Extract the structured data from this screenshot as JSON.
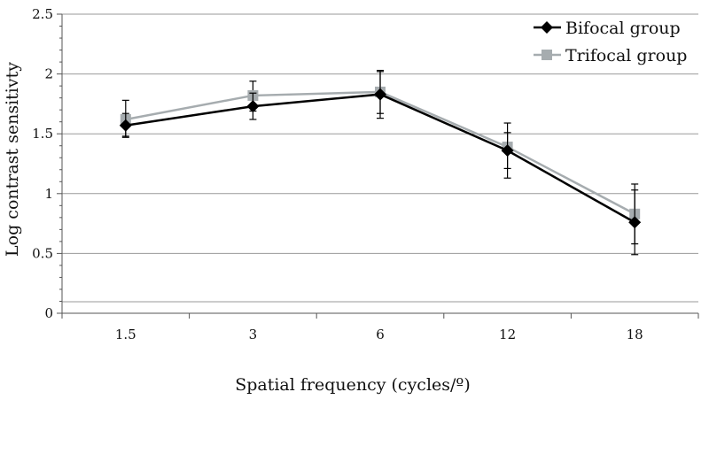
{
  "chart_data": {
    "type": "line",
    "title": "",
    "xlabel": "Spatial frequency (cycles/º)",
    "ylabel": "Log contrast sensitivty",
    "categories": [
      "1.5",
      "3",
      "6",
      "12",
      "18"
    ],
    "ylim": [
      0,
      2.5
    ],
    "yticks": [
      "0",
      "0.5",
      "1",
      "1.5",
      "2",
      "2.5"
    ],
    "grid": true,
    "legend_position": "top-right",
    "series": [
      {
        "name": "Bifocal group",
        "marker": "diamond",
        "color": "#000000",
        "values": [
          1.57,
          1.73,
          1.83,
          1.36,
          0.76
        ],
        "error_low": [
          1.47,
          1.62,
          1.63,
          1.13,
          0.49
        ],
        "error_high": [
          1.67,
          1.84,
          2.02,
          1.59,
          1.03
        ]
      },
      {
        "name": "Trifocal group",
        "marker": "square",
        "color": "#a6acaf",
        "values": [
          1.62,
          1.82,
          1.85,
          1.39,
          0.83
        ],
        "error_low": [
          1.48,
          1.69,
          1.67,
          1.21,
          0.58
        ],
        "error_high": [
          1.78,
          1.94,
          2.03,
          1.51,
          1.08
        ]
      }
    ]
  }
}
